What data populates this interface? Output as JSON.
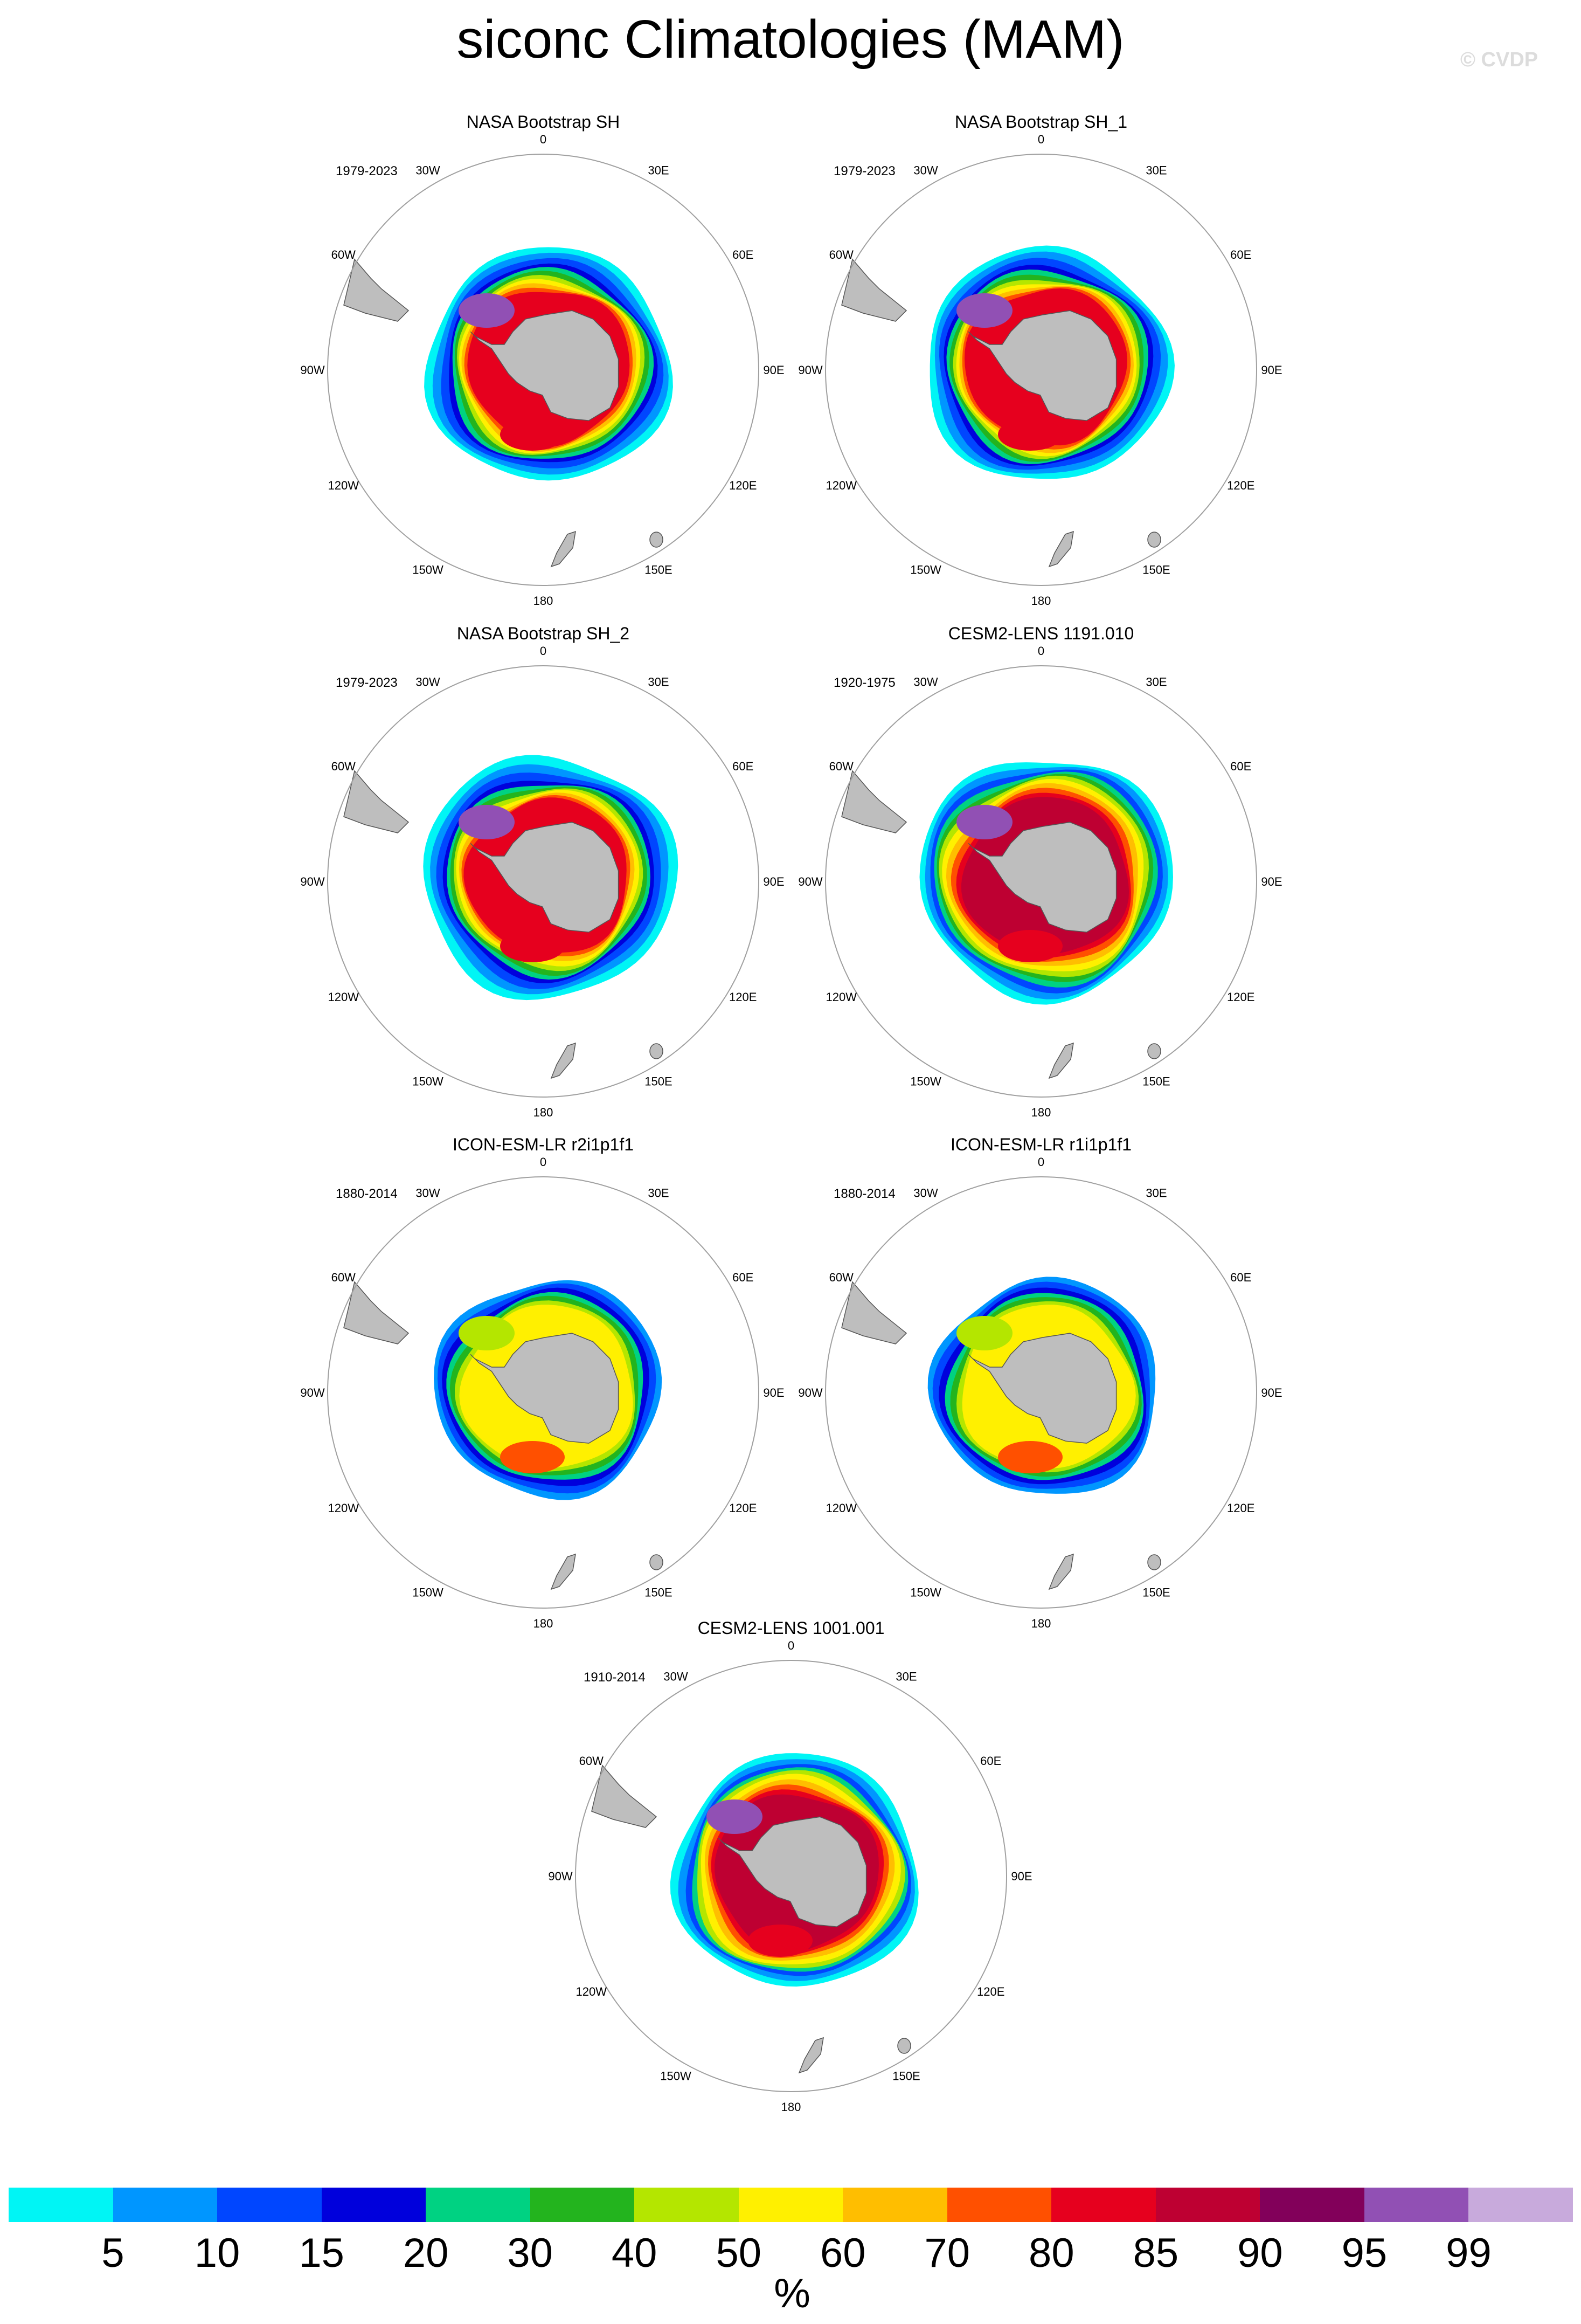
{
  "title": "siconc Climatologies (MAM)",
  "watermark": "© CVDP",
  "panels": [
    {
      "name": "NASA Bootstrap SH",
      "period": "1979-2023",
      "pattern": "obs"
    },
    {
      "name": "NASA Bootstrap SH_1",
      "period": "1979-2023",
      "pattern": "obs"
    },
    {
      "name": "NASA Bootstrap SH_2",
      "period": "1979-2023",
      "pattern": "obs2"
    },
    {
      "name": "CESM2-LENS 1191.010",
      "period": "1920-1975",
      "pattern": "cesm"
    },
    {
      "name": "ICON-ESM-LR r2i1p1f1",
      "period": "1880-2014",
      "pattern": "icon"
    },
    {
      "name": "ICON-ESM-LR r1i1p1f1",
      "period": "1880-2014",
      "pattern": "icon"
    },
    {
      "name": "CESM2-LENS 1001.001",
      "period": "1910-2014",
      "pattern": "cesm2"
    }
  ],
  "longitude_labels": [
    "0",
    "30E",
    "60E",
    "90E",
    "120E",
    "150E",
    "180",
    "150W",
    "120W",
    "90W",
    "60W",
    "30W"
  ],
  "colorbar": {
    "colors": [
      "#00f5f5",
      "#0096ff",
      "#0046ff",
      "#0000dc",
      "#00d282",
      "#23b41e",
      "#b4e600",
      "#fff000",
      "#ffbe00",
      "#ff5000",
      "#e6001e",
      "#be0032",
      "#82005a",
      "#9150b4",
      "#c8aadc"
    ],
    "ticks": [
      "5",
      "10",
      "15",
      "20",
      "30",
      "40",
      "50",
      "60",
      "70",
      "80",
      "85",
      "90",
      "95",
      "99"
    ],
    "units": "%"
  },
  "land_color": "#bebebe"
}
